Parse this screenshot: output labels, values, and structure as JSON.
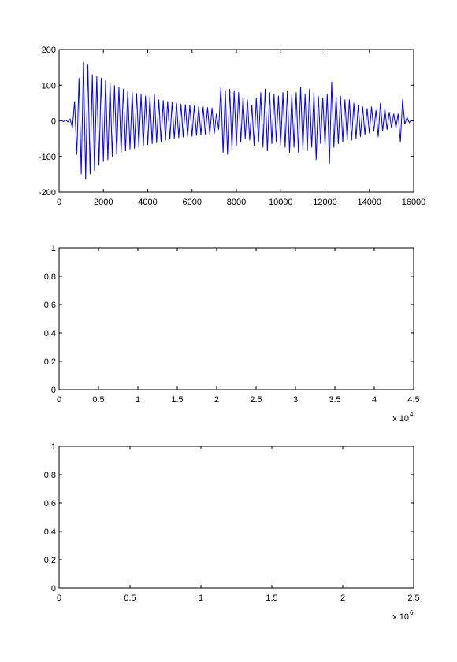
{
  "chart_data": [
    {
      "type": "line",
      "x": [
        0,
        100,
        200,
        300,
        400,
        500,
        600,
        700,
        800,
        900,
        1000,
        1100,
        1200,
        1300,
        1400,
        1500,
        1600,
        1700,
        1800,
        1900,
        2000,
        2100,
        2200,
        2300,
        2400,
        2500,
        2600,
        2700,
        2800,
        2900,
        3000,
        3100,
        3200,
        3300,
        3400,
        3500,
        3600,
        3700,
        3800,
        3900,
        4000,
        4100,
        4200,
        4300,
        4400,
        4500,
        4600,
        4700,
        4800,
        4900,
        5000,
        5100,
        5200,
        5300,
        5400,
        5500,
        5600,
        5700,
        5800,
        5900,
        6000,
        6100,
        6200,
        6300,
        6400,
        6500,
        6600,
        6700,
        6800,
        6900,
        7000,
        7100,
        7200,
        7300,
        7400,
        7500,
        7600,
        7700,
        7800,
        7900,
        8000,
        8100,
        8200,
        8300,
        8400,
        8500,
        8600,
        8700,
        8800,
        8900,
        9000,
        9100,
        9200,
        9300,
        9400,
        9500,
        9600,
        9700,
        9800,
        9900,
        10000,
        10100,
        10200,
        10300,
        10400,
        10500,
        10600,
        10700,
        10800,
        10900,
        11000,
        11100,
        11200,
        11300,
        11400,
        11500,
        11600,
        11700,
        11800,
        11900,
        12000,
        12100,
        12200,
        12300,
        12400,
        12500,
        12600,
        12700,
        12800,
        12900,
        13000,
        13100,
        13200,
        13300,
        13400,
        13500,
        13600,
        13700,
        13800,
        13900,
        14000,
        14100,
        14200,
        14300,
        14400,
        14500,
        14600,
        14700,
        14800,
        14900,
        15000,
        15100,
        15200,
        15300,
        15400,
        15500,
        15600,
        15700,
        15800,
        15900
      ],
      "series": [
        {
          "color": "#0000ff",
          "values": [
            0,
            1,
            -2,
            2,
            -3,
            5,
            -20,
            55,
            -95,
            120,
            -150,
            165,
            -165,
            160,
            -150,
            130,
            -140,
            125,
            -125,
            120,
            -115,
            115,
            -110,
            105,
            -100,
            100,
            -95,
            95,
            -90,
            90,
            -85,
            85,
            -80,
            80,
            -78,
            78,
            -75,
            75,
            -72,
            70,
            -68,
            68,
            -65,
            75,
            -62,
            60,
            -60,
            58,
            -55,
            55,
            -52,
            52,
            -50,
            50,
            -48,
            48,
            -46,
            46,
            -45,
            45,
            -44,
            43,
            -42,
            42,
            -40,
            40,
            -39,
            38,
            -38,
            37,
            -36,
            20,
            -25,
            95,
            -90,
            85,
            -95,
            90,
            -80,
            85,
            -70,
            80,
            -60,
            70,
            -50,
            60,
            -55,
            45,
            -70,
            65,
            -60,
            80,
            -75,
            90,
            -85,
            80,
            -65,
            75,
            -60,
            70,
            -70,
            80,
            -75,
            85,
            -90,
            75,
            -75,
            80,
            -90,
            95,
            -80,
            75,
            -85,
            90,
            -75,
            80,
            -110,
            70,
            -65,
            65,
            -70,
            75,
            -120,
            110,
            -75,
            70,
            -65,
            70,
            -60,
            60,
            -55,
            60,
            -55,
            50,
            -50,
            45,
            -45,
            40,
            -40,
            35,
            -35,
            40,
            -30,
            30,
            -45,
            50,
            -30,
            35,
            -25,
            25,
            -20,
            20,
            -20,
            20,
            -60,
            60,
            -10,
            10,
            -5,
            3
          ]
        }
      ],
      "xlim": [
        0,
        16000
      ],
      "xticks": [
        0,
        2000,
        4000,
        6000,
        8000,
        10000,
        12000,
        14000,
        16000
      ],
      "ylim": [
        -200,
        200
      ],
      "yticks": [
        -200,
        -100,
        0,
        100,
        200
      ]
    },
    {
      "type": "line",
      "xlim": [
        0,
        4.5
      ],
      "xticks": [
        0,
        0.5,
        1,
        1.5,
        2,
        2.5,
        3,
        3.5,
        4,
        4.5
      ],
      "ylim": [
        0,
        1
      ],
      "yticks": [
        0,
        0.2,
        0.4,
        0.6,
        0.8,
        1
      ],
      "x_multiplier": {
        "base": "x 10",
        "exponent": "4"
      }
    },
    {
      "type": "line",
      "xlim": [
        0,
        2.5
      ],
      "xticks": [
        0,
        0.5,
        1,
        1.5,
        2,
        2.5
      ],
      "ylim": [
        0,
        1
      ],
      "yticks": [
        0,
        0.2,
        0.4,
        0.6,
        0.8,
        1
      ],
      "x_multiplier": {
        "base": "x 10",
        "exponent": "6"
      }
    }
  ]
}
